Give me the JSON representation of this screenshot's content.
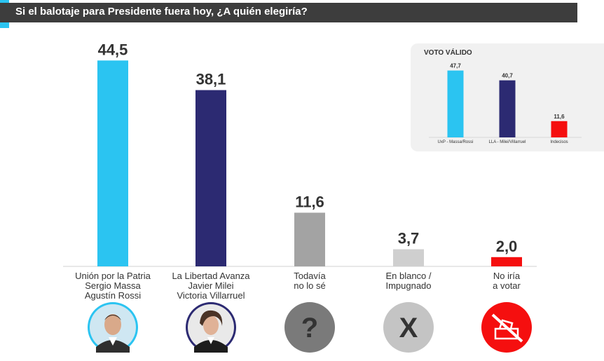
{
  "title": "Si el balotaje para Presidente fuera hoy, ¿A quién elegiría?",
  "colors": {
    "light_blue": "#2bc4f1",
    "navy": "#2c2a72",
    "gray": "#a3a3a3",
    "light_gray": "#cfcfcf",
    "red": "#f50f0f"
  },
  "chart_data": [
    {
      "type": "bar",
      "title": "",
      "categories": [
        [
          "Unión por la Patria",
          "Sergio Massa",
          "Agustín Rossi"
        ],
        [
          "La Libertad Avanza",
          "Javier Milei",
          "Victoria Villarruel"
        ],
        [
          "Todavía",
          "no lo sé"
        ],
        [
          "En blanco /",
          "Impugnado"
        ],
        [
          "No iría",
          "a votar"
        ]
      ],
      "values": [
        44.5,
        38.1,
        11.6,
        3.7,
        2.0
      ],
      "value_labels": [
        "44,5",
        "38,1",
        "11,6",
        "3,7",
        "2,0"
      ],
      "bar_colors": [
        "#2bc4f1",
        "#2c2a72",
        "#a3a3a3",
        "#cfcfcf",
        "#f50f0f"
      ],
      "grid": false,
      "legend": "none"
    },
    {
      "type": "bar",
      "title": "VOTO VÁLIDO",
      "categories": [
        "UxP - Massa/Rossi",
        "LLA - Milei/Villarruel",
        "Indecisos"
      ],
      "values": [
        47.7,
        40.7,
        11.6
      ],
      "value_labels": [
        "47,7",
        "40,7",
        "11,6"
      ],
      "bar_colors": [
        "#2bc4f1",
        "#2c2a72",
        "#f50f0f"
      ],
      "grid": false,
      "legend": "none"
    }
  ],
  "icons": [
    {
      "name": "sergio-massa-portrait-icon",
      "bg": "#2bc4f1"
    },
    {
      "name": "javier-milei-portrait-icon",
      "bg": "#2c2a72"
    },
    {
      "name": "question-mark-icon",
      "bg": "#7a7a7a",
      "glyph": "?"
    },
    {
      "name": "x-mark-icon",
      "bg": "#c4c4c4",
      "glyph": "X"
    },
    {
      "name": "crossed-ballot-box-icon",
      "bg": "#f50f0f"
    }
  ]
}
